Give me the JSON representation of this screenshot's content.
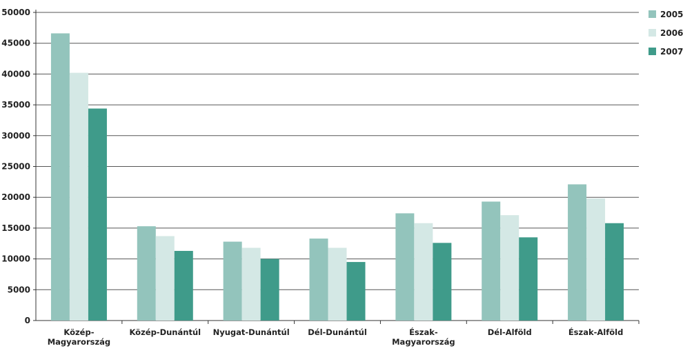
{
  "chart_data": {
    "type": "bar",
    "categories": [
      [
        "Közép-",
        "Magyarország"
      ],
      [
        "Közép-Dunántúl"
      ],
      [
        "Nyugat-Dunántúl"
      ],
      [
        "Dél-Dunántúl"
      ],
      [
        "Észak-",
        "Magyarország"
      ],
      [
        "Dél-Alföld"
      ],
      [
        "Észak-Alföld"
      ]
    ],
    "series": [
      {
        "name": "2005",
        "color": "#93c4bc",
        "values": [
          46600,
          15300,
          12800,
          13300,
          17400,
          19300,
          22100
        ]
      },
      {
        "name": "2006",
        "color": "#d4e8e5",
        "values": [
          40200,
          13700,
          11800,
          11800,
          15800,
          17100,
          19800
        ]
      },
      {
        "name": "2007",
        "color": "#3f9b8a",
        "values": [
          34400,
          11300,
          10000,
          9500,
          12600,
          13500,
          15800
        ]
      }
    ],
    "ylim": [
      0,
      50000
    ],
    "yticks": [
      "0",
      "5000",
      "10000",
      "15000",
      "20000",
      "25000",
      "30000",
      "35000",
      "40000",
      "45000",
      "50000"
    ],
    "grid": true,
    "legend_position": "top-right"
  }
}
